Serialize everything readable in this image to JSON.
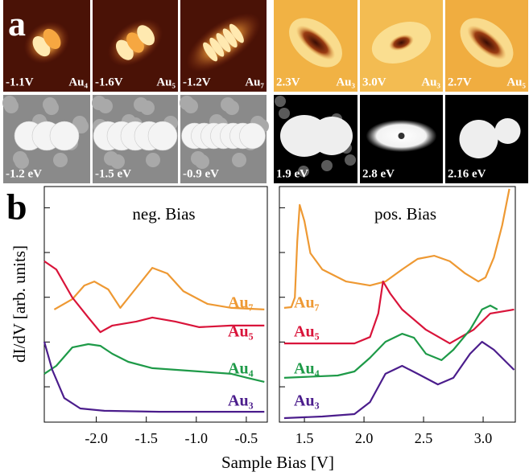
{
  "panel_a": {
    "label": "a",
    "tiles": [
      {
        "bias": "-1.1V",
        "cluster": "Au₄"
      },
      {
        "bias": "-1.6V",
        "cluster": "Au₅"
      },
      {
        "bias": "-1.2V",
        "cluster": "Au₇"
      },
      {
        "bias": "2.3V",
        "cluster": "Au₃"
      },
      {
        "bias": "3.0V",
        "cluster": "Au₃"
      },
      {
        "bias": "2.7V",
        "cluster": "Au₅"
      },
      {
        "bias": "-1.2 eV"
      },
      {
        "bias": "-1.5 eV"
      },
      {
        "bias": "-0.9 eV"
      },
      {
        "bias": "1.9 eV"
      },
      {
        "bias": "2.8 eV"
      },
      {
        "bias": "2.16 eV"
      }
    ]
  },
  "panel_b": {
    "label": "b",
    "x_label": "Sample Bias [V]",
    "y_label": "dI/dV  [arb. units]"
  },
  "chart_data": [
    {
      "type": "line",
      "title": "neg. Bias",
      "xlim": [
        -2.52,
        -0.29
      ],
      "xticks": [
        {
          "value": -2,
          "label": "-2.0"
        },
        -1.5,
        {
          "value": -1,
          "label": "-1.0"
        },
        -0.5
      ],
      "ylim": [
        0,
        10
      ],
      "yticks": [
        1.5,
        3.4,
        5.3,
        7.2,
        9.1
      ],
      "series": [
        {
          "name": "Au₇",
          "color": "#ee9933",
          "x": [
            -2.42,
            -2.24,
            -2.12,
            -2.02,
            -1.88,
            -1.76,
            -1.6,
            -1.44,
            -1.29,
            -1.13,
            -0.89,
            -0.65,
            -0.32
          ],
          "values": [
            4.78,
            5.22,
            5.8,
            5.97,
            5.63,
            4.85,
            5.7,
            6.55,
            6.31,
            5.56,
            5.02,
            4.85,
            4.78
          ]
        },
        {
          "name": "Au₅",
          "color": "#d9143a",
          "x": [
            -2.52,
            -2.4,
            -2.24,
            -2.08,
            -1.96,
            -1.84,
            -1.6,
            -1.44,
            -1.21,
            -0.97,
            -0.65,
            -0.32
          ],
          "values": [
            6.83,
            6.48,
            5.29,
            4.44,
            3.82,
            4.1,
            4.27,
            4.44,
            4.27,
            4.03,
            4.1,
            4.1
          ]
        },
        {
          "name": "Au₄",
          "color": "#1e9a48",
          "x": [
            -2.52,
            -2.4,
            -2.24,
            -2.08,
            -1.96,
            -1.84,
            -1.68,
            -1.44,
            -0.97,
            -0.65,
            -0.49,
            -0.32
          ],
          "values": [
            2.05,
            2.39,
            3.17,
            3.31,
            3.24,
            2.9,
            2.56,
            2.29,
            2.15,
            2.05,
            1.88,
            1.71
          ]
        },
        {
          "name": "Au₃",
          "color": "#4b1d8c",
          "x": [
            -2.52,
            -2.44,
            -2.32,
            -2.16,
            -1.92,
            -1.37,
            -0.32
          ],
          "values": [
            3.41,
            2.22,
            1.02,
            0.58,
            0.48,
            0.44,
            0.44
          ]
        }
      ]
    },
    {
      "type": "line",
      "title": "pos. Bias",
      "xlim": [
        1.29,
        3.27
      ],
      "xticks": [
        1.5,
        {
          "value": 2,
          "label": "2.0"
        },
        2.5,
        {
          "value": 3,
          "label": "3.0"
        }
      ],
      "ylim": [
        0,
        10
      ],
      "yticks": [
        1.5,
        3.4,
        5.3,
        7.2,
        9.1
      ],
      "series": [
        {
          "name": "Au₇",
          "color": "#ee9933",
          "x": [
            1.33,
            1.39,
            1.42,
            1.44,
            1.46,
            1.5,
            1.55,
            1.65,
            1.85,
            2.05,
            2.18,
            2.32,
            2.45,
            2.59,
            2.72,
            2.85,
            2.96,
            3.02,
            3.09,
            3.16,
            3.22
          ],
          "values": [
            4.85,
            4.88,
            5.29,
            7.68,
            9.22,
            8.53,
            7.17,
            6.48,
            5.97,
            5.8,
            5.97,
            6.48,
            6.93,
            7.06,
            6.83,
            6.31,
            5.97,
            6.14,
            6.99,
            8.36,
            9.9
          ]
        },
        {
          "name": "Au₅",
          "color": "#d9143a",
          "x": [
            1.33,
            1.92,
            2.05,
            2.12,
            2.16,
            2.22,
            2.32,
            2.52,
            2.72,
            2.92,
            3.06,
            3.26
          ],
          "values": [
            3.34,
            3.34,
            3.61,
            4.61,
            5.97,
            5.46,
            4.78,
            3.92,
            3.34,
            3.92,
            4.61,
            4.78
          ]
        },
        {
          "name": "Au₄",
          "color": "#1e9a48",
          "x": [
            1.33,
            1.78,
            1.92,
            2.05,
            2.18,
            2.32,
            2.42,
            2.52,
            2.65,
            2.75,
            2.89,
            2.99,
            3.06,
            3.12
          ],
          "values": [
            1.88,
            1.98,
            2.15,
            2.73,
            3.41,
            3.75,
            3.58,
            2.9,
            2.63,
            3.07,
            3.92,
            4.78,
            4.95,
            4.78
          ]
        },
        {
          "name": "Au₃",
          "color": "#4b1d8c",
          "x": [
            1.33,
            1.65,
            1.92,
            2.05,
            2.18,
            2.32,
            2.45,
            2.62,
            2.75,
            2.89,
            2.99,
            3.09,
            3.26
          ],
          "values": [
            0.17,
            0.24,
            0.34,
            0.85,
            2.05,
            2.39,
            2.05,
            1.6,
            1.88,
            2.9,
            3.41,
            3.07,
            2.22
          ]
        }
      ]
    }
  ]
}
